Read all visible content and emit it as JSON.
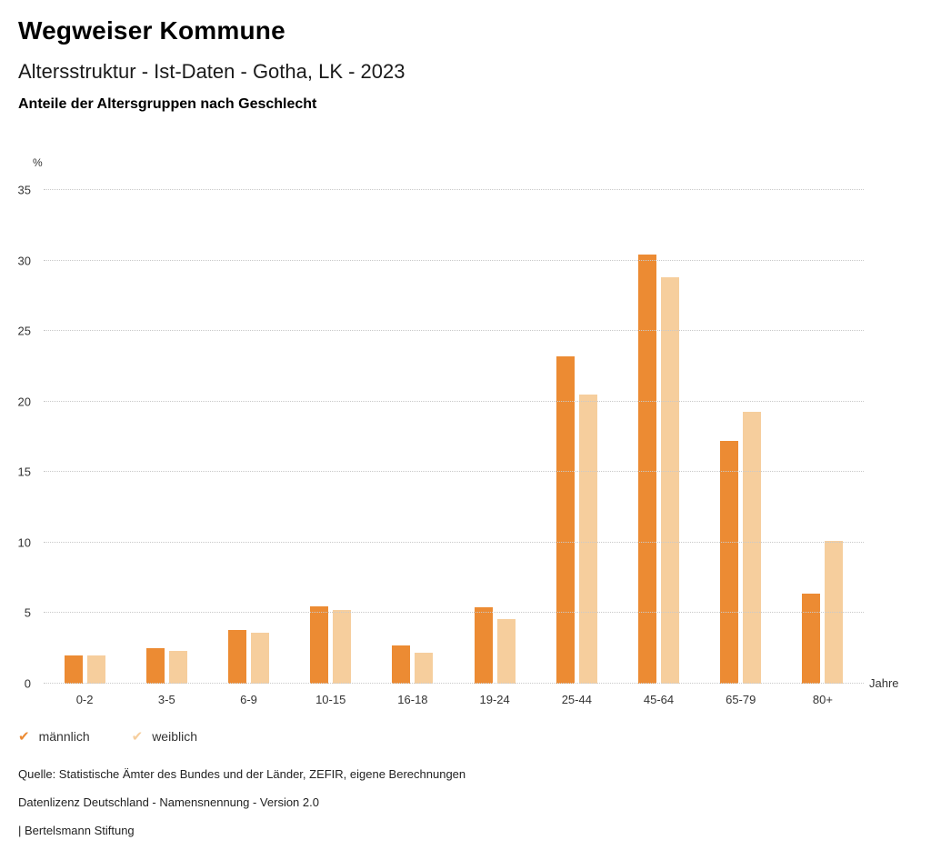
{
  "header": {
    "title": "Wegweiser Kommune",
    "subtitle": "Altersstruktur - Ist-Daten - Gotha, LK - 2023",
    "chart_heading": "Anteile der Altersgruppen nach Geschlecht"
  },
  "chart_data": {
    "type": "bar",
    "title": "Anteile der Altersgruppen nach Geschlecht",
    "y_unit_label": "%",
    "x_unit_label": "Jahre",
    "categories": [
      "0-2",
      "3-5",
      "6-9",
      "10-15",
      "16-18",
      "19-24",
      "25-44",
      "45-64",
      "65-79",
      "80+"
    ],
    "series": [
      {
        "name": "männlich",
        "color": "#EC8B33",
        "values": [
          2.0,
          2.5,
          3.8,
          5.5,
          2.7,
          5.4,
          23.2,
          30.4,
          17.2,
          6.4
        ]
      },
      {
        "name": "weiblich",
        "color": "#F6CE9D",
        "values": [
          2.0,
          2.3,
          3.6,
          5.2,
          2.2,
          4.6,
          20.5,
          28.8,
          19.3,
          10.1
        ]
      }
    ],
    "ylim": [
      0,
      35
    ],
    "yticks": [
      0,
      5,
      10,
      15,
      20,
      25,
      30,
      35
    ],
    "grid": true,
    "legend_position": "bottom"
  },
  "legend": {
    "items": [
      {
        "label": "männlich",
        "color": "#EC8B33"
      },
      {
        "label": "weiblich",
        "color": "#F6CE9D"
      }
    ]
  },
  "footer": {
    "source": "Quelle: Statistische Ämter des Bundes und der Länder, ZEFIR, eigene Berechnungen",
    "license": "Datenlizenz Deutschland - Namensnennung - Version 2.0",
    "attribution": "| Bertelsmann Stiftung"
  }
}
